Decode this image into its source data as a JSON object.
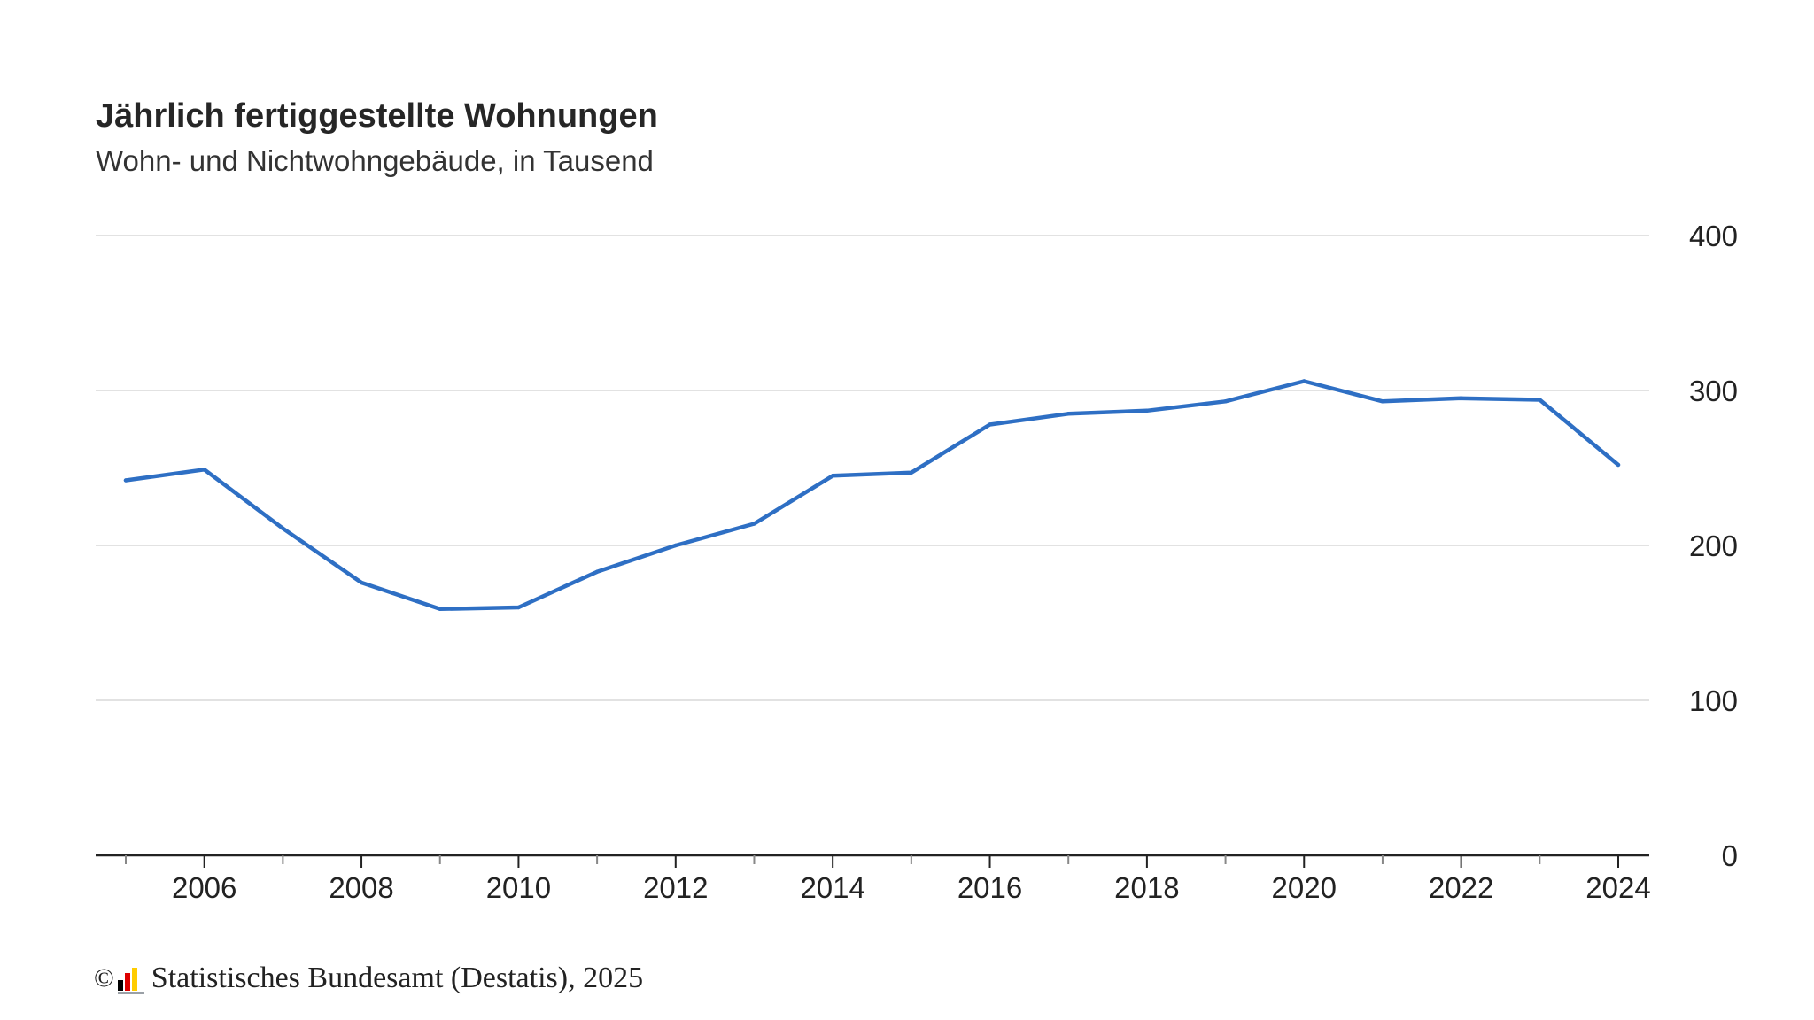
{
  "title": "Jährlich fertiggestellte Wohnungen",
  "subtitle": "Wohn- und Nichtwohngebäude, in Tausend",
  "footer": {
    "copyright_symbol": "©",
    "source": "Statistisches Bundesamt (Destatis), 2025",
    "logo_icon": "destatis-logo-icon",
    "logo_colors": [
      "#000000",
      "#dd0000",
      "#ffcc00"
    ]
  },
  "colors": {
    "line": "#2e6fc4",
    "grid": "#d9d9d9",
    "axis": "#222222"
  },
  "chart_data": {
    "type": "line",
    "title": "Jährlich fertiggestellte Wohnungen",
    "subtitle": "Wohn- und Nichtwohngebäude, in Tausend",
    "xlabel": "",
    "ylabel": "",
    "x": [
      2005,
      2006,
      2007,
      2008,
      2009,
      2010,
      2011,
      2012,
      2013,
      2014,
      2015,
      2016,
      2017,
      2018,
      2019,
      2020,
      2021,
      2022,
      2023,
      2024
    ],
    "series": [
      {
        "values": [
          242,
          249,
          211,
          176,
          159,
          160,
          183,
          200,
          214,
          245,
          247,
          278,
          285,
          287,
          293,
          306,
          293,
          295,
          294,
          252
        ]
      }
    ],
    "x_tick_labels": [
      "2006",
      "2008",
      "2010",
      "2012",
      "2014",
      "2016",
      "2018",
      "2020",
      "2022",
      "2024"
    ],
    "y_tick_labels": [
      "0",
      "100",
      "200",
      "300",
      "400"
    ],
    "xlim": [
      2005,
      2024
    ],
    "ylim": [
      0,
      400
    ],
    "y_axis_side": "right",
    "grid": true,
    "legend": "none"
  }
}
